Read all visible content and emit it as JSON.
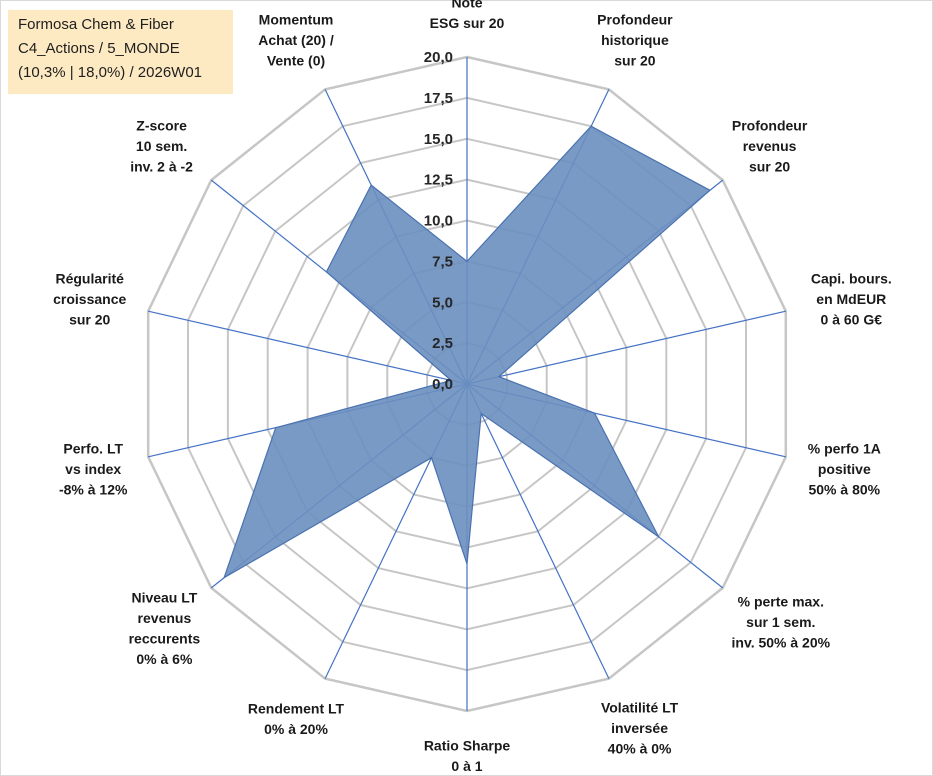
{
  "title_box": {
    "line1": "Formosa Chem & Fiber",
    "line2": "C4_Actions / 5_MONDE",
    "line3": "(10,3% | 18,0%) / 2026W01",
    "background": "#fde9c2"
  },
  "chart_data": {
    "type": "radar",
    "title": "Formosa Chem & Fiber",
    "rlim": [
      0,
      20
    ],
    "ticks": [
      "0,0",
      "2,5",
      "5,0",
      "7,5",
      "10,0",
      "12,5",
      "15,0",
      "17,5",
      "20,0"
    ],
    "grid": true,
    "series": [
      {
        "name": "Formosa Chem & Fiber",
        "fill": "#6b8fc0",
        "stroke": "#4a72b0",
        "values": [
          7.5,
          17.5,
          19.0,
          2.0,
          8.0,
          15.0,
          2.0,
          11.0,
          5.0,
          19.0,
          12.0,
          1.0,
          11.0,
          13.5
        ]
      }
    ],
    "axes": [
      {
        "lines": [
          "Note",
          "ESG sur 20"
        ]
      },
      {
        "lines": [
          "Profondeur",
          "historique",
          "sur 20"
        ]
      },
      {
        "lines": [
          "Profondeur",
          "revenus",
          "sur 20"
        ]
      },
      {
        "lines": [
          "Capi. bours.",
          "en MdEUR",
          "0 à 60 G€"
        ]
      },
      {
        "lines": [
          "% perfo 1A",
          "positive",
          "50% à 80%"
        ]
      },
      {
        "lines": [
          "% perte max.",
          "sur 1 sem.",
          "inv. 50% à 20%"
        ]
      },
      {
        "lines": [
          "Volatilité LT",
          "inversée",
          "40% à 0%"
        ]
      },
      {
        "lines": [
          "Ratio Sharpe",
          "0 à 1"
        ]
      },
      {
        "lines": [
          "Rendement LT",
          "0% à 20%"
        ]
      },
      {
        "lines": [
          "Niveau LT",
          "revenus",
          "reccurents",
          "0% à 6%"
        ]
      },
      {
        "lines": [
          "Perfo. LT",
          "vs index",
          "-8% à 12%"
        ]
      },
      {
        "lines": [
          "Régularité",
          "croissance",
          "sur 20"
        ]
      },
      {
        "lines": [
          "Z-score",
          "10 sem.",
          "inv. 2 à -2"
        ]
      },
      {
        "lines": [
          "Momentum",
          "Achat (20) /",
          "Vente (0)"
        ]
      }
    ]
  }
}
